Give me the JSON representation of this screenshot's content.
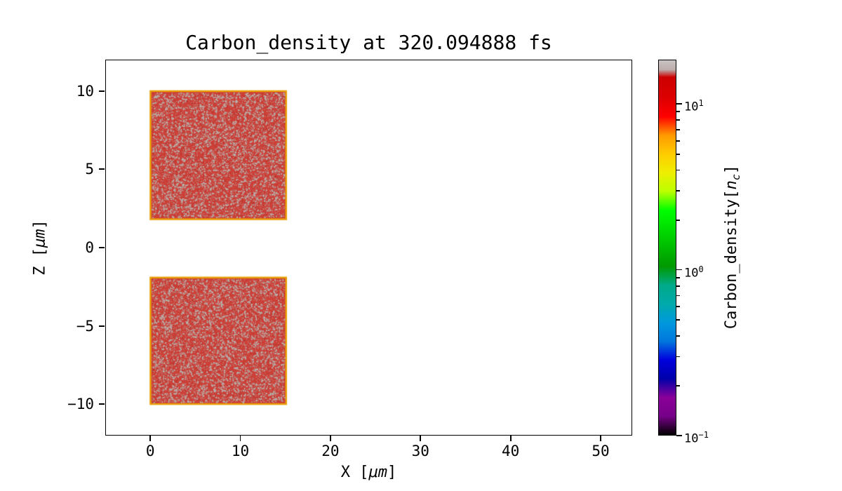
{
  "figure": {
    "background": "#ffffff"
  },
  "chart_data": {
    "type": "heatmap",
    "title": "Carbon_density at 320.094888 fs",
    "time_fs": 320.094888,
    "xlabel": {
      "pre": "X [",
      "math": "μm",
      "post": "]"
    },
    "ylabel": {
      "pre": "Z [",
      "math": "μm",
      "post": "]"
    },
    "xlim": [
      -5,
      53.5
    ],
    "ylim": [
      -12,
      12
    ],
    "x_ticks": {
      "values": [
        0,
        10,
        20,
        30,
        40,
        50
      ],
      "labels": [
        "0",
        "10",
        "20",
        "30",
        "40",
        "50"
      ]
    },
    "y_ticks": {
      "values": [
        10,
        5,
        0,
        -5,
        -10
      ],
      "labels": [
        "10",
        "5",
        "0",
        "−5",
        "−10"
      ]
    },
    "grid": false,
    "plot_background": "#ffffff",
    "regions": [
      {
        "name": "upper-slab",
        "x": [
          0,
          15.1
        ],
        "z": [
          1.8,
          10.0
        ],
        "density_nc": 10,
        "fill": "#cc4038",
        "speckle": "#b8b2ae",
        "fleck": "#a52d24",
        "edge": "#e89e06"
      },
      {
        "name": "lower-slab",
        "x": [
          0,
          15.1
        ],
        "z": [
          -10.0,
          -1.9
        ],
        "density_nc": 10,
        "fill": "#cc4038",
        "speckle": "#b8b2ae",
        "fleck": "#a52d24",
        "edge": "#e89e06"
      }
    ],
    "colorbar": {
      "label": {
        "pre": "Carbon_density[",
        "math_base": "n",
        "math_sub": "c",
        "post": "]"
      },
      "scale": "log",
      "vmin": 0.1,
      "vmax": 18.5,
      "colormap": "nipy_spectral",
      "ticks": [
        {
          "base": "10",
          "exp": "1",
          "value": 10
        },
        {
          "base": "10",
          "exp": "0",
          "value": 1
        },
        {
          "base": "10",
          "exp": "−1",
          "value": 0.1
        }
      ],
      "gradient_stops": [
        {
          "pos": 0.0,
          "color": "#000000"
        },
        {
          "pos": 0.05,
          "color": "#770088"
        },
        {
          "pos": 0.1,
          "color": "#890099"
        },
        {
          "pos": 0.15,
          "color": "#0000aa"
        },
        {
          "pos": 0.2,
          "color": "#0000dd"
        },
        {
          "pos": 0.25,
          "color": "#0077dd"
        },
        {
          "pos": 0.3,
          "color": "#0099dd"
        },
        {
          "pos": 0.35,
          "color": "#00aaaa"
        },
        {
          "pos": 0.4,
          "color": "#00aa88"
        },
        {
          "pos": 0.45,
          "color": "#009900"
        },
        {
          "pos": 0.5,
          "color": "#00bb00"
        },
        {
          "pos": 0.55,
          "color": "#00dd00"
        },
        {
          "pos": 0.6,
          "color": "#00ff00"
        },
        {
          "pos": 0.65,
          "color": "#bbff00"
        },
        {
          "pos": 0.7,
          "color": "#eeee00"
        },
        {
          "pos": 0.75,
          "color": "#ffcc00"
        },
        {
          "pos": 0.8,
          "color": "#ff9900"
        },
        {
          "pos": 0.85,
          "color": "#ff0000"
        },
        {
          "pos": 0.9,
          "color": "#dd0000"
        },
        {
          "pos": 0.955,
          "color": "#cc0000"
        },
        {
          "pos": 0.975,
          "color": "#bcaeac"
        },
        {
          "pos": 1.0,
          "color": "#c9c3c3"
        }
      ]
    }
  }
}
